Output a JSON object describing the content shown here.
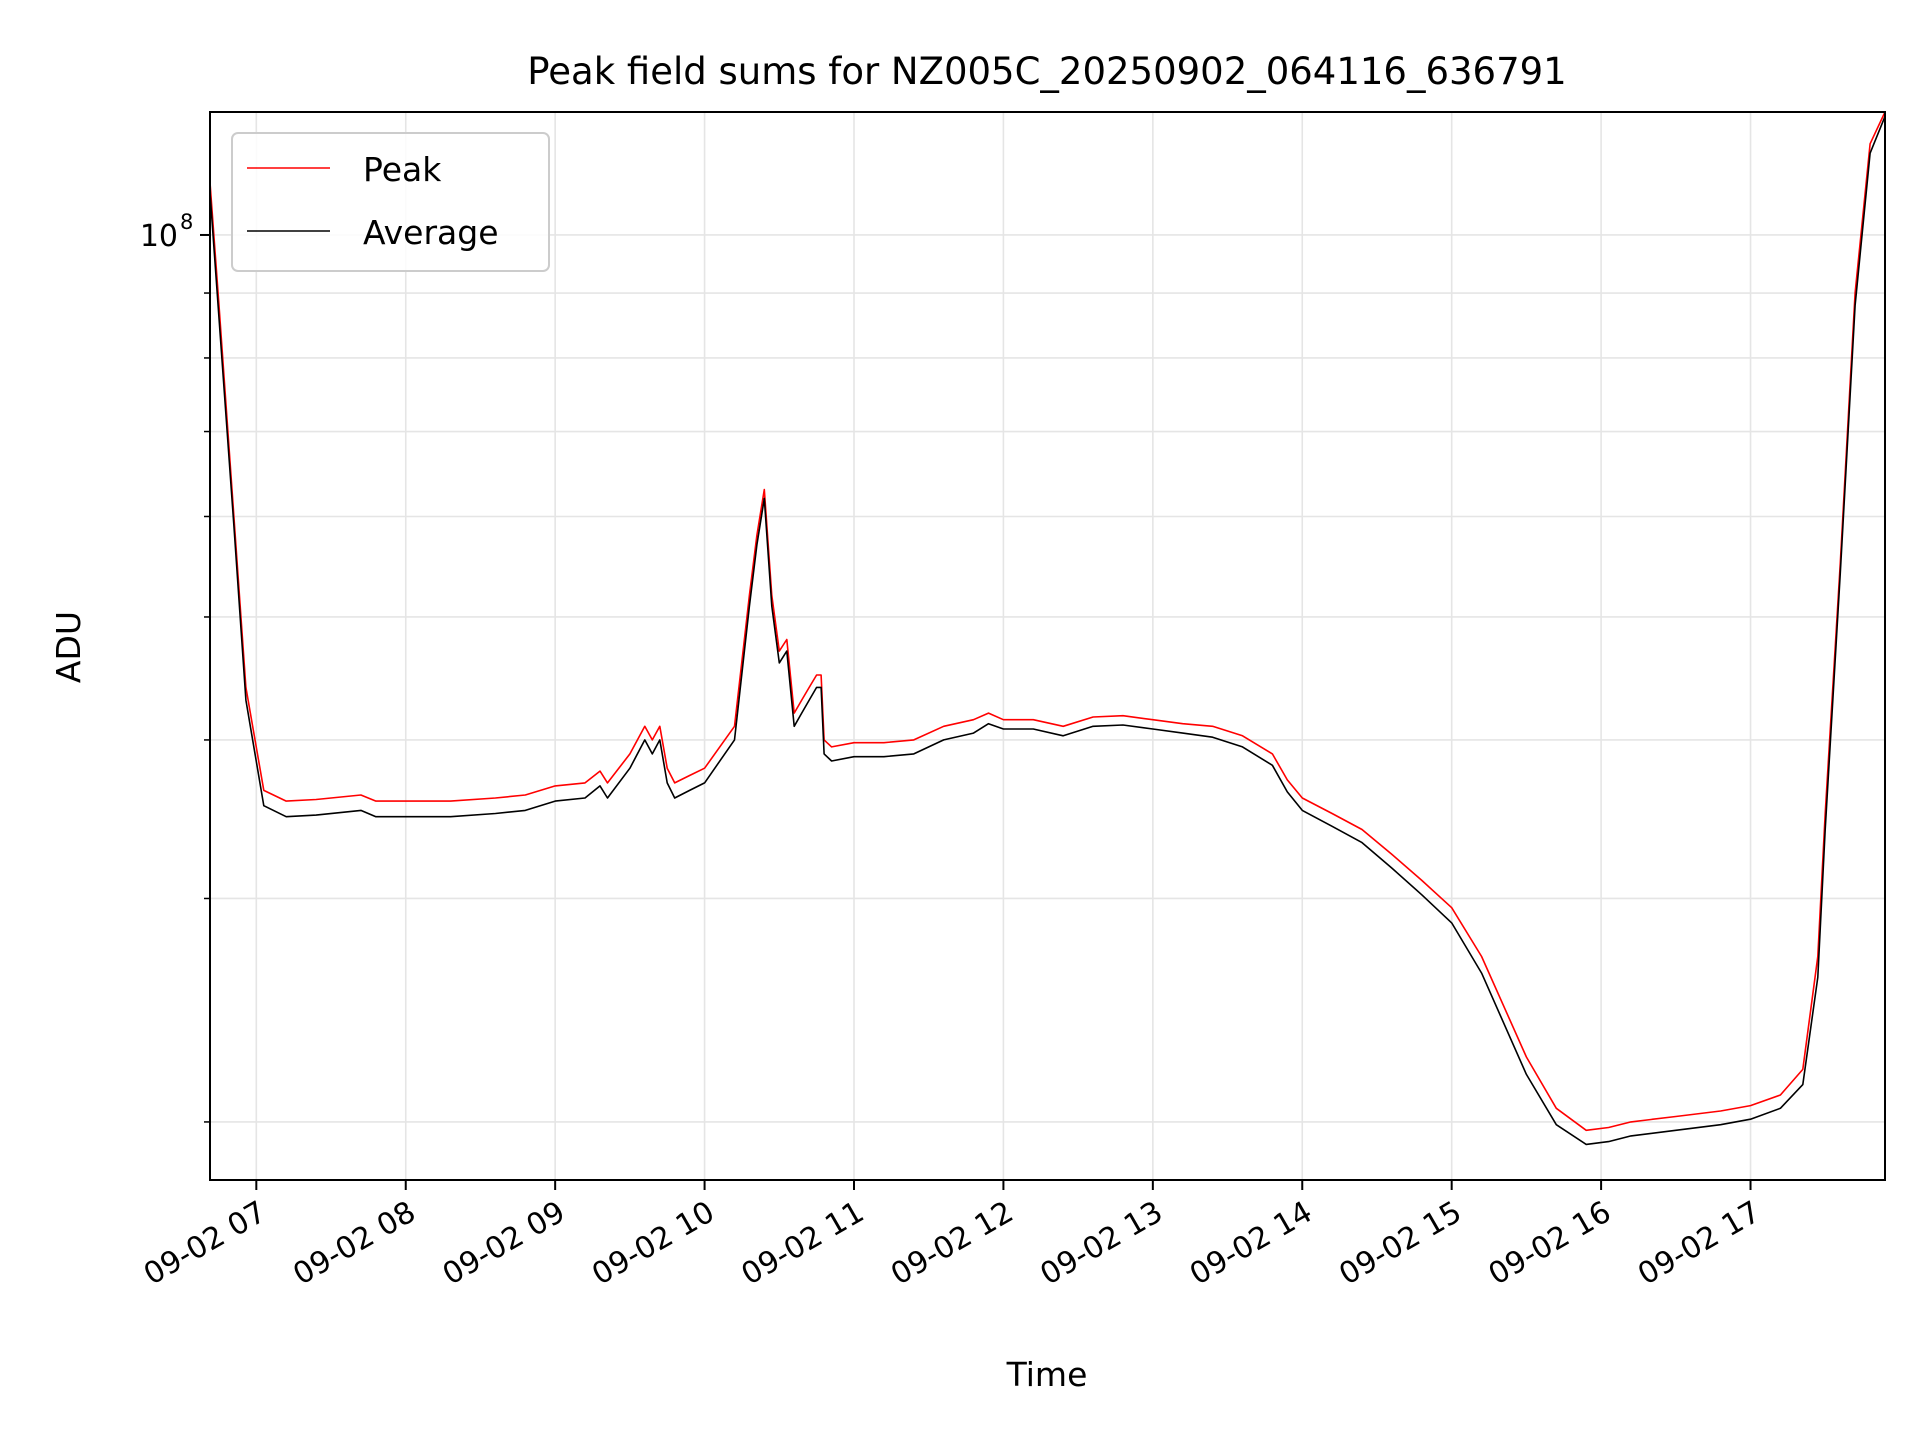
{
  "chart_data": {
    "type": "line",
    "title": "Peak field sums for NZ005C_20250902_064116_636791",
    "xlabel": "Time",
    "ylabel": "ADU",
    "yscale": "log",
    "grid": true,
    "legend_position": "upper-left",
    "x_tick_labels": [
      "09-02 07",
      "09-02 08",
      "09-02 09",
      "09-02 10",
      "09-02 11",
      "09-02 12",
      "09-02 13",
      "09-02 14",
      "09-02 15",
      "09-02 16",
      "09-02 17"
    ],
    "x_tick_hours": [
      7,
      8,
      9,
      10,
      11,
      12,
      13,
      14,
      15,
      16,
      17
    ],
    "xlim_hours": [
      6.69,
      17.9
    ],
    "y_major_tick": {
      "value": 100000000,
      "base": "10",
      "exponent": "8"
    },
    "y_minor_ticks": [
      20000000,
      30000000,
      40000000,
      50000000,
      60000000,
      70000000,
      80000000,
      90000000
    ],
    "ylim": [
      18000000,
      125000000
    ],
    "colors": {
      "peak": "#ff0000",
      "average": "#000000",
      "grid": "#e5e5e5"
    },
    "series": [
      {
        "name": "Peak",
        "color": "#ff0000",
        "x_hours": [
          6.69,
          6.75,
          6.85,
          6.93,
          7.05,
          7.2,
          7.4,
          7.7,
          7.8,
          8.0,
          8.3,
          8.6,
          8.8,
          9.0,
          9.2,
          9.3,
          9.35,
          9.5,
          9.6,
          9.65,
          9.7,
          9.75,
          9.8,
          9.9,
          10.0,
          10.2,
          10.3,
          10.35,
          10.4,
          10.45,
          10.5,
          10.55,
          10.6,
          10.65,
          10.7,
          10.75,
          10.78,
          10.8,
          10.85,
          11.0,
          11.2,
          11.4,
          11.6,
          11.8,
          11.9,
          12.0,
          12.2,
          12.4,
          12.6,
          12.8,
          13.0,
          13.2,
          13.4,
          13.6,
          13.8,
          13.9,
          14.0,
          14.2,
          14.4,
          14.6,
          14.8,
          15.0,
          15.2,
          15.5,
          15.7,
          15.9,
          16.05,
          16.2,
          16.5,
          16.8,
          17.0,
          17.2,
          17.35,
          17.45,
          17.5,
          17.6,
          17.7,
          17.8,
          17.9
        ],
        "values": [
          110000000,
          88000000,
          60000000,
          44000000,
          36500000,
          35800000,
          35900000,
          36200000,
          35800000,
          35800000,
          35800000,
          36000000,
          36200000,
          36800000,
          37000000,
          37800000,
          37000000,
          39000000,
          41000000,
          40000000,
          41000000,
          38000000,
          37000000,
          37500000,
          38000000,
          41000000,
          52000000,
          58000000,
          63000000,
          52000000,
          47000000,
          48000000,
          42000000,
          43000000,
          44000000,
          45000000,
          45000000,
          40000000,
          39500000,
          39800000,
          39800000,
          40000000,
          41000000,
          41500000,
          42000000,
          41500000,
          41500000,
          41000000,
          41700000,
          41800000,
          41500000,
          41200000,
          41000000,
          40300000,
          39000000,
          37200000,
          36000000,
          35000000,
          34000000,
          32500000,
          31000000,
          29500000,
          27000000,
          22500000,
          20500000,
          19700000,
          19800000,
          20000000,
          20200000,
          20400000,
          20600000,
          21000000,
          22000000,
          27000000,
          35000000,
          55000000,
          90000000,
          118000000,
          125000000
        ]
      },
      {
        "name": "Average",
        "color": "#000000",
        "x_hours": [
          6.69,
          6.75,
          6.85,
          6.93,
          7.05,
          7.2,
          7.4,
          7.7,
          7.8,
          8.0,
          8.3,
          8.6,
          8.8,
          9.0,
          9.2,
          9.3,
          9.35,
          9.5,
          9.6,
          9.65,
          9.7,
          9.75,
          9.8,
          9.9,
          10.0,
          10.2,
          10.3,
          10.35,
          10.4,
          10.45,
          10.5,
          10.55,
          10.6,
          10.65,
          10.7,
          10.75,
          10.78,
          10.8,
          10.85,
          11.0,
          11.2,
          11.4,
          11.6,
          11.8,
          11.9,
          12.0,
          12.2,
          12.4,
          12.6,
          12.8,
          13.0,
          13.2,
          13.4,
          13.6,
          13.8,
          13.9,
          14.0,
          14.2,
          14.4,
          14.6,
          14.8,
          15.0,
          15.2,
          15.5,
          15.7,
          15.9,
          16.05,
          16.2,
          16.5,
          16.8,
          17.0,
          17.2,
          17.35,
          17.45,
          17.5,
          17.6,
          17.7,
          17.8,
          17.9
        ],
        "values": [
          108000000,
          86000000,
          59000000,
          43000000,
          35500000,
          34800000,
          34900000,
          35200000,
          34800000,
          34800000,
          34800000,
          35000000,
          35200000,
          35800000,
          36000000,
          36800000,
          36000000,
          38000000,
          40000000,
          39000000,
          40000000,
          37000000,
          36000000,
          36500000,
          37000000,
          40000000,
          51000000,
          57000000,
          62000000,
          51000000,
          46000000,
          47000000,
          41000000,
          42000000,
          43000000,
          44000000,
          44000000,
          39000000,
          38500000,
          38800000,
          38800000,
          39000000,
          40000000,
          40500000,
          41200000,
          40800000,
          40800000,
          40300000,
          41000000,
          41100000,
          40800000,
          40500000,
          40200000,
          39500000,
          38200000,
          36400000,
          35200000,
          34200000,
          33200000,
          31700000,
          30200000,
          28700000,
          26200000,
          21800000,
          19900000,
          19200000,
          19300000,
          19500000,
          19700000,
          19900000,
          20100000,
          20500000,
          21400000,
          26000000,
          34000000,
          54000000,
          88000000,
          116000000,
          124000000
        ]
      }
    ]
  }
}
